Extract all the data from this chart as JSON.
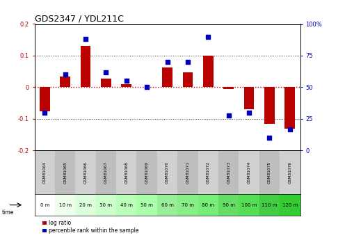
{
  "title": "GDS2347 / YDL211C",
  "samples": [
    "GSM81064",
    "GSM81065",
    "GSM81066",
    "GSM81067",
    "GSM81068",
    "GSM81069",
    "GSM81070",
    "GSM81071",
    "GSM81072",
    "GSM81073",
    "GSM81074",
    "GSM81075",
    "GSM81076"
  ],
  "time_labels": [
    "0 m",
    "10 m",
    "20 m",
    "30 m",
    "40 m",
    "50 m",
    "60 m",
    "70 m",
    "80 m",
    "90 m",
    "100 m",
    "110 m",
    "120 m"
  ],
  "log_ratio": [
    -0.075,
    0.033,
    0.13,
    0.028,
    0.01,
    0.0,
    0.063,
    0.048,
    0.1,
    -0.005,
    -0.07,
    -0.115,
    -0.13
  ],
  "percentile": [
    30,
    60,
    88,
    62,
    55,
    50,
    70,
    70,
    90,
    28,
    30,
    10,
    17
  ],
  "ylim_left": [
    -0.2,
    0.2
  ],
  "ylim_right": [
    0,
    100
  ],
  "yticks_left": [
    -0.2,
    -0.1,
    0.0,
    0.1,
    0.2
  ],
  "yticks_right": [
    0,
    25,
    50,
    75,
    100
  ],
  "bar_color": "#bb0000",
  "dot_color": "#0000bb",
  "zero_line_color": "#cc0000",
  "grid_color": "#333333",
  "bg_color": "#ffffff",
  "title_fontsize": 9,
  "tick_fontsize": 6,
  "sample_fontsize": 4.2,
  "time_fontsize": 5.0,
  "legend_fontsize": 5.5,
  "bar_width": 0.5,
  "dot_size": 18,
  "time_colors": [
    "#ffffff",
    "#eeffee",
    "#ddffdd",
    "#ccffcc",
    "#bbffbb",
    "#aaffaa",
    "#99ee99",
    "#88ee88",
    "#77ee77",
    "#66dd66",
    "#55dd55",
    "#44cc44",
    "#33cc33"
  ]
}
